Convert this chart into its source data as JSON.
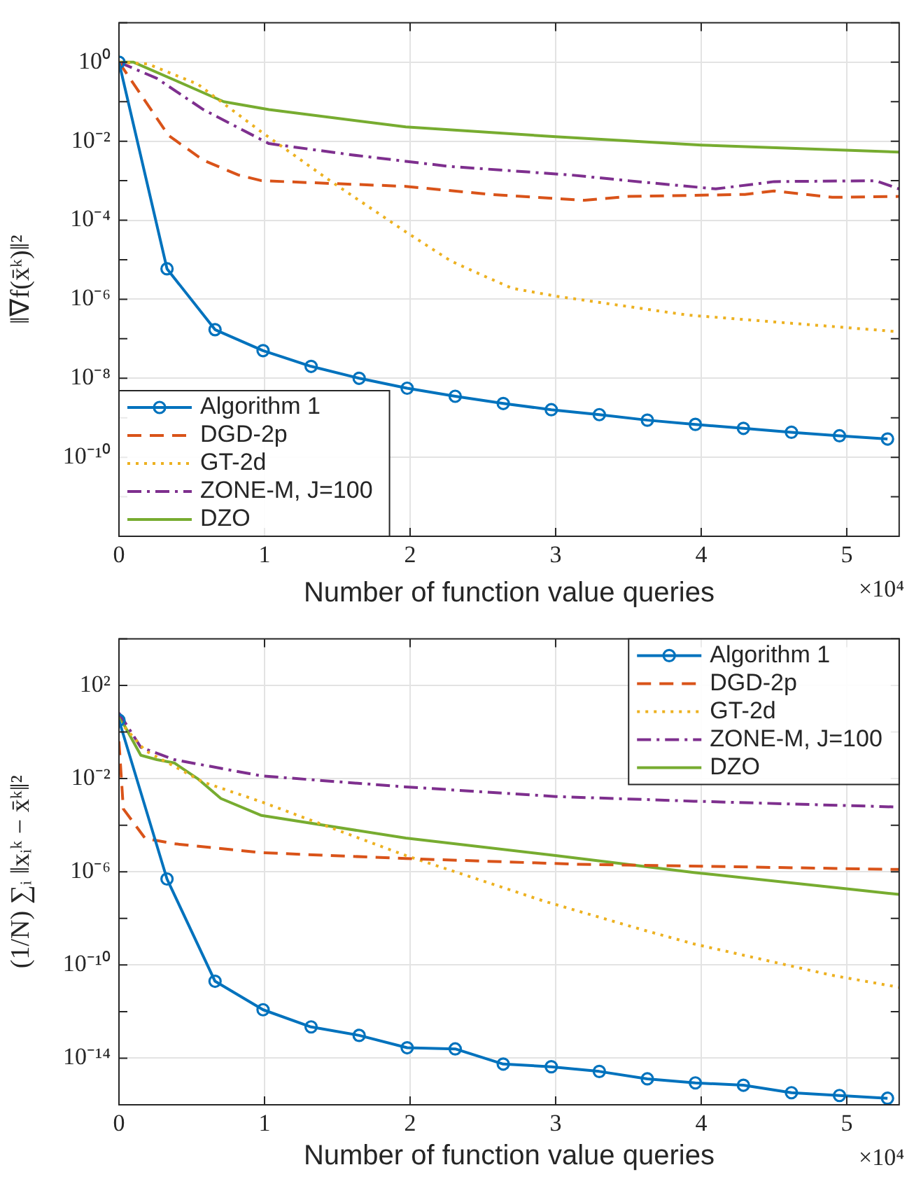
{
  "chart_data": [
    {
      "type": "line",
      "xlabel": "Number of function value queries",
      "ylabel": "‖∇f(x̄ᵏ)‖²",
      "log": "y",
      "grid": true,
      "legend": "bottom left",
      "xlim": [
        0,
        5.36
      ],
      "xticks": [
        0,
        1,
        2,
        3,
        4,
        5
      ],
      "ylim": [
        1e-12,
        10
      ],
      "yticks": [
        {
          "value": 1e-12,
          "label": null
        },
        {
          "value": 1e-11,
          "label": null
        },
        {
          "value": 1e-10,
          "label": "10⁻¹⁰"
        },
        {
          "value": 1e-09,
          "label": null
        },
        {
          "value": 1e-08,
          "label": "10⁻⁸"
        },
        {
          "value": 1e-07,
          "label": null
        },
        {
          "value": 1e-06,
          "label": "10⁻⁶"
        },
        {
          "value": 1e-05,
          "label": null
        },
        {
          "value": 0.0001,
          "label": "10⁻⁴"
        },
        {
          "value": 0.001,
          "label": null
        },
        {
          "value": 0.01,
          "label": "10⁻²"
        },
        {
          "value": 0.1,
          "label": null
        },
        {
          "value": 1,
          "label": "10⁰"
        },
        {
          "value": 10,
          "label": null
        }
      ],
      "annotations": [
        "×10⁴"
      ],
      "series": [
        {
          "name": "Algorithm 1",
          "color": "#0072bd",
          "line_style": "solid",
          "marker": "circle",
          "x": [
            0,
            0.33,
            0.66,
            0.99,
            1.32,
            1.65,
            1.98,
            2.31,
            2.64,
            2.97,
            3.3,
            3.63,
            3.96,
            4.29,
            4.62,
            4.95,
            5.28
          ],
          "values": [
            1,
            5.9e-06,
            1.7e-07,
            5e-08,
            2e-08,
            1e-08,
            5.6e-09,
            3.5e-09,
            2.3e-09,
            1.6e-09,
            1.2e-09,
            8.7e-10,
            6.8e-10,
            5.4e-10,
            4.3e-10,
            3.5e-10,
            2.9e-10
          ]
        },
        {
          "name": "DGD-2p",
          "color": "#d95319",
          "line_style": "dashed",
          "marker": "none",
          "x": [
            0,
            0.34,
            0.58,
            0.82,
            0.98,
            1.97,
            2.55,
            3.2,
            3.5,
            4.3,
            4.5,
            4.9,
            5.36
          ],
          "values": [
            1,
            0.014,
            0.0033,
            0.0014,
            0.001,
            0.00072,
            0.00045,
            0.00032,
            0.0004,
            0.00045,
            0.00055,
            0.00038,
            0.0004
          ]
        },
        {
          "name": "GT-2d",
          "color": "#edb120",
          "line_style": "dotted",
          "marker": "none",
          "x": [
            0,
            0.2,
            0.54,
            0.98,
            1.45,
            1.97,
            2.28,
            2.5,
            2.7,
            3.0,
            3.9,
            5.36
          ],
          "values": [
            1,
            0.9,
            0.28,
            0.017,
            0.001,
            5.1e-05,
            9.3e-06,
            4e-06,
            1.9e-06,
            1.2e-06,
            4e-07,
            1.5e-07
          ]
        },
        {
          "name": "ZONE-M, J=100",
          "color": "#7e2f8e",
          "line_style": "dashdot",
          "marker": "none",
          "x": [
            0,
            0.26,
            0.58,
            1.03,
            1.6,
            2.27,
            3.1,
            3.5,
            4.1,
            4.5,
            5.2,
            5.36
          ],
          "values": [
            1,
            0.39,
            0.063,
            0.0087,
            0.0045,
            0.0023,
            0.0014,
            0.001,
            0.00062,
            0.00095,
            0.001,
            0.00062
          ]
        },
        {
          "name": "DZO",
          "color": "#77ac30",
          "line_style": "solid",
          "marker": "none",
          "x": [
            0,
            0.1,
            0.4,
            0.72,
            1.03,
            1.97,
            3.0,
            4.0,
            5.36
          ],
          "values": [
            1,
            1,
            0.33,
            0.1,
            0.063,
            0.023,
            0.013,
            0.008,
            0.0053
          ]
        }
      ]
    },
    {
      "type": "line",
      "xlabel": "Number of function value queries",
      "ylabel": "(1/N) ∑ᵢ ‖xᵢᵏ − x̄ᵏ‖²",
      "log": "y",
      "grid": true,
      "legend": "top right",
      "xlim": [
        0,
        5.36
      ],
      "xticks": [
        0,
        1,
        2,
        3,
        4,
        5
      ],
      "ylim": [
        1e-16,
        10000
      ],
      "yticks": [
        {
          "value": 1e-16,
          "label": null
        },
        {
          "value": 1e-14,
          "label": "10⁻¹⁴"
        },
        {
          "value": 1e-12,
          "label": null
        },
        {
          "value": 1e-10,
          "label": "10⁻¹⁰"
        },
        {
          "value": 1e-08,
          "label": null
        },
        {
          "value": 1e-06,
          "label": "10⁻⁶"
        },
        {
          "value": 0.0001,
          "label": null
        },
        {
          "value": 0.01,
          "label": "10⁻²"
        },
        {
          "value": 1,
          "label": null
        },
        {
          "value": 100,
          "label": "10²"
        },
        {
          "value": 10000,
          "label": null
        }
      ],
      "annotations": [
        "×10⁴"
      ],
      "series": [
        {
          "name": "Algorithm 1",
          "color": "#0072bd",
          "line_style": "solid",
          "marker": "circle",
          "x": [
            0,
            0.33,
            0.66,
            0.99,
            1.32,
            1.65,
            1.98,
            2.31,
            2.64,
            2.97,
            3.3,
            3.63,
            3.96,
            4.29,
            4.62,
            4.95,
            5.28
          ],
          "values": [
            3.2,
            4.9e-07,
            2e-11,
            1.2e-12,
            2.2e-13,
            9.5e-14,
            2.8e-14,
            2.5e-14,
            5.6e-15,
            4.3e-15,
            2.7e-15,
            1.3e-15,
            8.7e-16,
            6.9e-16,
            3.3e-16,
            2.5e-16,
            1.9e-16
          ]
        },
        {
          "name": "DGD-2p",
          "color": "#d95319",
          "line_style": "dashed",
          "marker": "none",
          "x": [
            0,
            0.03,
            0.18,
            0.38,
            0.98,
            1.97,
            3.16,
            5.36
          ],
          "values": [
            0.4,
            0.0005,
            2.7e-05,
            1.6e-05,
            6.6e-06,
            3.7e-06,
            2.1e-06,
            1.26e-06
          ]
        },
        {
          "name": "GT-2d",
          "color": "#edb120",
          "line_style": "dotted",
          "marker": "none",
          "x": [
            0,
            0.18,
            0.58,
            0.98,
            1.97,
            2.92,
            3.6,
            3.95,
            4.9,
            5.36
          ],
          "values": [
            3,
            0.16,
            0.007,
            0.001,
            5e-06,
            5.5e-08,
            3.2e-09,
            8e-10,
            3.6e-11,
            1.1e-11
          ]
        },
        {
          "name": "ZONE-M, J=100",
          "color": "#7e2f8e",
          "line_style": "dashdot",
          "marker": "none",
          "x": [
            0,
            0.15,
            0.38,
            0.98,
            1.97,
            3.0,
            3.95,
            5.36
          ],
          "values": [
            6.6,
            0.22,
            0.065,
            0.013,
            0.0044,
            0.0017,
            0.00107,
            0.0006
          ]
        },
        {
          "name": "DZO",
          "color": "#77ac30",
          "line_style": "solid",
          "marker": "none",
          "x": [
            0,
            0.15,
            0.26,
            0.38,
            0.54,
            0.7,
            0.98,
            1.97,
            3.0,
            3.95,
            5.36
          ],
          "values": [
            5,
            0.1,
            0.065,
            0.047,
            0.01,
            0.0014,
            0.00026,
            2.8e-05,
            5e-06,
            9.3e-07,
            1.07e-07
          ]
        }
      ]
    }
  ]
}
